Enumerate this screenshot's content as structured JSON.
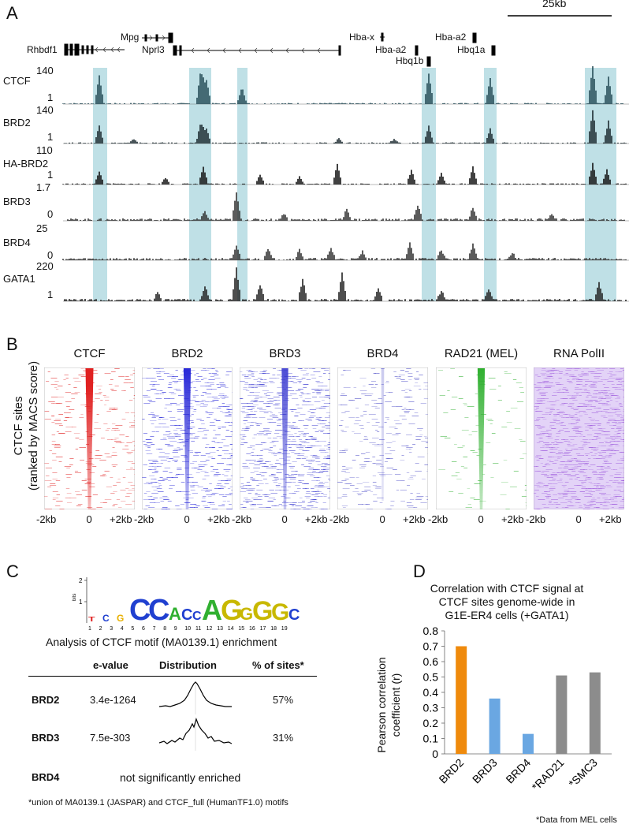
{
  "panels": {
    "a": "A",
    "b": "B",
    "c": "C",
    "d": "D"
  },
  "panelA": {
    "scale_label": "25kb",
    "genes": [
      "Rhbdf1",
      "Mpg",
      "Nprl3",
      "Hba-x",
      "Hba-a2",
      "Hbq1b",
      "Hba-a2",
      "Hbq1a"
    ],
    "tracks": [
      {
        "name": "CTCF",
        "max": "140",
        "min": "1"
      },
      {
        "name": "BRD2",
        "max": "140",
        "min": "1"
      },
      {
        "name": "HA-BRD2",
        "max": "110",
        "min": "1"
      },
      {
        "name": "BRD3",
        "max": "1.7",
        "min": "0"
      },
      {
        "name": "BRD4",
        "max": "25",
        "min": "0"
      },
      {
        "name": "GATA1",
        "max": "220",
        "min": "1"
      }
    ]
  },
  "panelB": {
    "titles": [
      "CTCF",
      "BRD2",
      "BRD3",
      "BRD4",
      "RAD21 (MEL)",
      "RNA PolII"
    ],
    "colors": [
      "#e02020",
      "#2a2ad8",
      "#3a3ad0",
      "#5050c8",
      "#30b030",
      "#9a50d8"
    ],
    "ylabel_line1": "CTCF sites",
    "ylabel_line2": "(ranked by MACS score)",
    "ticks": [
      "-2kb",
      "0",
      "+2kb"
    ]
  },
  "panelC": {
    "logo_ylabel": "bits",
    "logo_tick_2": "2",
    "logo_tick_1": "1",
    "logo_positions": [
      "1",
      "2",
      "3",
      "4",
      "5",
      "6",
      "7",
      "8",
      "9",
      "10",
      "11",
      "12",
      "13",
      "14",
      "15",
      "16",
      "17",
      "18",
      "19"
    ],
    "title": "Analysis of CTCF motif (MA0139.1) enrichment",
    "headers": {
      "evalue": "e-value",
      "distribution": "Distribution",
      "pct": "% of sites*"
    },
    "rows": [
      {
        "name": "BRD2",
        "evalue": "3.4e-1264",
        "pct": "57%"
      },
      {
        "name": "BRD3",
        "evalue": "7.5e-303",
        "pct": "31%"
      }
    ],
    "brd4_name": "BRD4",
    "brd4_text": "not significantly enriched",
    "footnote": "*union of MA0139.1 (JASPAR) and CTCF_full (HumanTF1.0) motifs"
  },
  "chart_data": {
    "type": "bar",
    "title": "Correlation with CTCF signal at CTCF sites genome-wide in G1E-ER4 cells (+GATA1)",
    "title_lines": [
      "Correlation with CTCF signal at",
      "CTCF sites genome-wide in",
      "G1E-ER4 cells (+GATA1)"
    ],
    "ylabel": "Pearson correlation coefficient (r)",
    "ylabel_lines": [
      "Pearson correlation",
      "coefficient (r)"
    ],
    "categories": [
      "BRD2",
      "BRD3",
      "BRD4",
      "*RAD21",
      "*SMC3"
    ],
    "values": [
      0.7,
      0.36,
      0.13,
      0.51,
      0.53
    ],
    "colors": [
      "#ef8a0c",
      "#6aa7e2",
      "#6aa7e2",
      "#8c8c8c",
      "#8c8c8c"
    ],
    "ylim": [
      0,
      0.8
    ],
    "yticks": [
      "0",
      "0.1",
      "0.2",
      "0.3",
      "0.4",
      "0.5",
      "0.6",
      "0.7",
      "0.8"
    ],
    "footnote": "*Data from MEL cells"
  }
}
